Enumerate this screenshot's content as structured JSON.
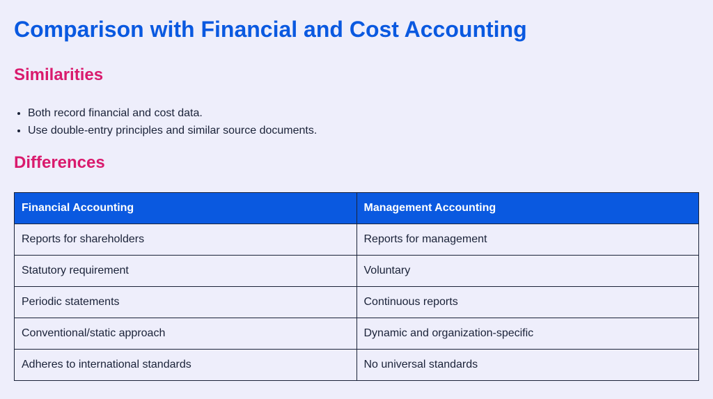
{
  "title": "Comparison with Financial and Cost Accounting",
  "similarities": {
    "heading": "Similarities",
    "items": [
      "Both record financial and cost data.",
      "Use double-entry principles and similar source documents."
    ]
  },
  "differences": {
    "heading": "Differences",
    "columns": [
      "Financial Accounting",
      "Management Accounting"
    ],
    "rows": [
      [
        "Reports for shareholders",
        "Reports for management"
      ],
      [
        "Statutory requirement",
        "Voluntary"
      ],
      [
        "Periodic statements",
        "Continuous reports"
      ],
      [
        "Conventional/static approach",
        "Dynamic and organization-specific"
      ],
      [
        "Adheres to international standards",
        "No universal standards"
      ]
    ]
  },
  "colors": {
    "title": "#0a59e0",
    "heading": "#d91a6d",
    "table_header_bg": "#0a59e0",
    "background": "#eeeefb"
  }
}
